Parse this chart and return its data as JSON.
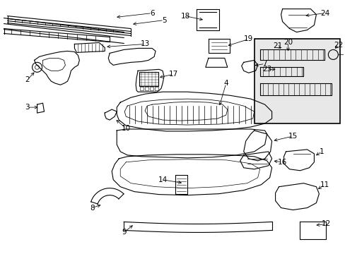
{
  "bg_color": "#ffffff",
  "line_color": "#000000",
  "box_bg": "#e8e8e8",
  "fig_width": 4.89,
  "fig_height": 3.6,
  "dpi": 100,
  "font_size": 7.5
}
